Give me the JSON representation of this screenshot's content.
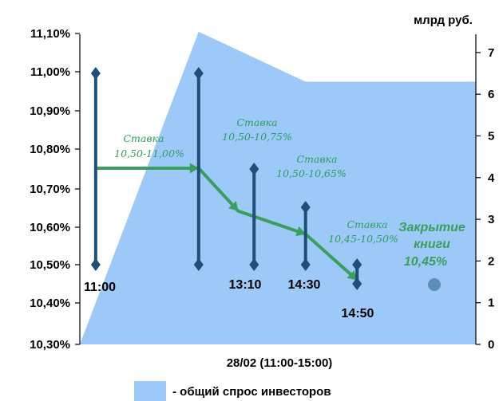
{
  "chart_data": {
    "type": "area",
    "title": "",
    "xlabel": "28/02 (11:00-15:00)",
    "ylabel_left": "",
    "ylabel_right": "млрд руб.",
    "yleft_ticks": [
      "10,30%",
      "10,40%",
      "10,50%",
      "10,60%",
      "10,70%",
      "10,80%",
      "10,90%",
      "11,00%",
      "11,10%"
    ],
    "yleft_values": [
      10.3,
      10.4,
      10.5,
      10.6,
      10.7,
      10.8,
      10.9,
      11.0,
      11.1
    ],
    "yright_ticks": [
      "0",
      "1",
      "2",
      "3",
      "4",
      "5",
      "6",
      "7"
    ],
    "yright_ylim": [
      0,
      7.5
    ],
    "yleft_ylim": [
      10.3,
      11.1
    ],
    "demand_series": {
      "name": "- общий спрос инвесторов",
      "color": "#9cc9f7",
      "points": [
        {
          "t": 0,
          "v": 0
        },
        {
          "t": 0.3,
          "v": 7.5
        },
        {
          "t": 0.57,
          "v": 6.3
        },
        {
          "t": 1.0,
          "v": 6.3
        }
      ]
    },
    "ranges": [
      {
        "t": 0.04,
        "low": 10.5,
        "high": 11.0,
        "time_label": "11:00"
      },
      {
        "t": 0.3,
        "low": 10.5,
        "high": 11.0,
        "time_label": ""
      },
      {
        "t": 0.44,
        "low": 10.5,
        "high": 10.75,
        "time_label": "13:10"
      },
      {
        "t": 0.57,
        "low": 10.5,
        "high": 10.65,
        "time_label": "14:30"
      },
      {
        "t": 0.7,
        "low": 10.45,
        "high": 10.5,
        "time_label": "14:50"
      }
    ],
    "guidance_path": [
      {
        "t": 0.04,
        "v": 10.75
      },
      {
        "t": 0.3,
        "v": 10.75
      },
      {
        "t": 0.4,
        "v": 10.64
      },
      {
        "t": 0.57,
        "v": 10.58
      },
      {
        "t": 0.7,
        "v": 10.46
      }
    ],
    "rate_annotations": [
      {
        "line1": "Ставка",
        "line2": "10,50-11,00%"
      },
      {
        "line1": "Ставка",
        "line2": "10,50-10,75%"
      },
      {
        "line1": "Ставка",
        "line2": "10,50-10,65%"
      },
      {
        "line1": "Ставка",
        "line2": "10,45-10,50%"
      }
    ],
    "closing": {
      "line1": "Закрытие",
      "line2": "книги",
      "line3": "10,45%",
      "t": 0.93,
      "v": 10.45
    },
    "colors": {
      "demand": "#9cc9f7",
      "range": "#1f4e79",
      "arrow": "#3a9e5c",
      "closing_dot": "#5b8fb9"
    }
  },
  "legend": {
    "label": "- общий спрос инвесторов"
  }
}
